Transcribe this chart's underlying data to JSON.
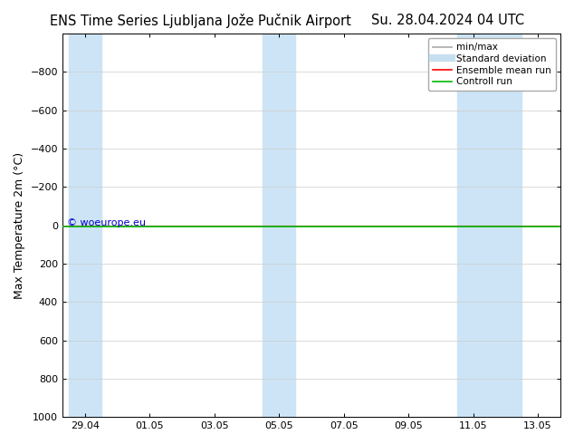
{
  "title_left": "ENS Time Series Ljubljana Jože Pučnik Airport",
  "title_right": "Su. 28.04.2024 04 UTC",
  "ylabel": "Max Temperature 2m (°C)",
  "watermark": "© woeurope.eu",
  "ylim_top": -1000,
  "ylim_bottom": 1000,
  "yticks": [
    -800,
    -600,
    -400,
    -200,
    0,
    200,
    400,
    600,
    800,
    1000
  ],
  "x_labels": [
    "29.04",
    "01.05",
    "03.05",
    "05.05",
    "07.05",
    "09.05",
    "11.05",
    "13.05"
  ],
  "x_positions": [
    0,
    2,
    4,
    6,
    8,
    10,
    12,
    14
  ],
  "shaded_ranges": [
    [
      -0.5,
      0.5
    ],
    [
      5.5,
      6.5
    ],
    [
      11.5,
      13.5
    ]
  ],
  "shade_color": "#cce4f5",
  "ensemble_mean_color": "#ff0000",
  "control_run_color": "#00bb00",
  "background_color": "#ffffff",
  "grid_color": "#cccccc",
  "legend_labels": [
    "min/max",
    "Standard deviation",
    "Ensemble mean run",
    "Controll run"
  ],
  "legend_line_colors": [
    "#aaaaaa",
    "#c5dff0",
    "#ff0000",
    "#00bb00"
  ],
  "title_fontsize": 10.5,
  "ylabel_fontsize": 9,
  "tick_fontsize": 8,
  "legend_fontsize": 7.5,
  "watermark_fontsize": 8,
  "xlim_left": -0.7,
  "xlim_right": 14.7
}
